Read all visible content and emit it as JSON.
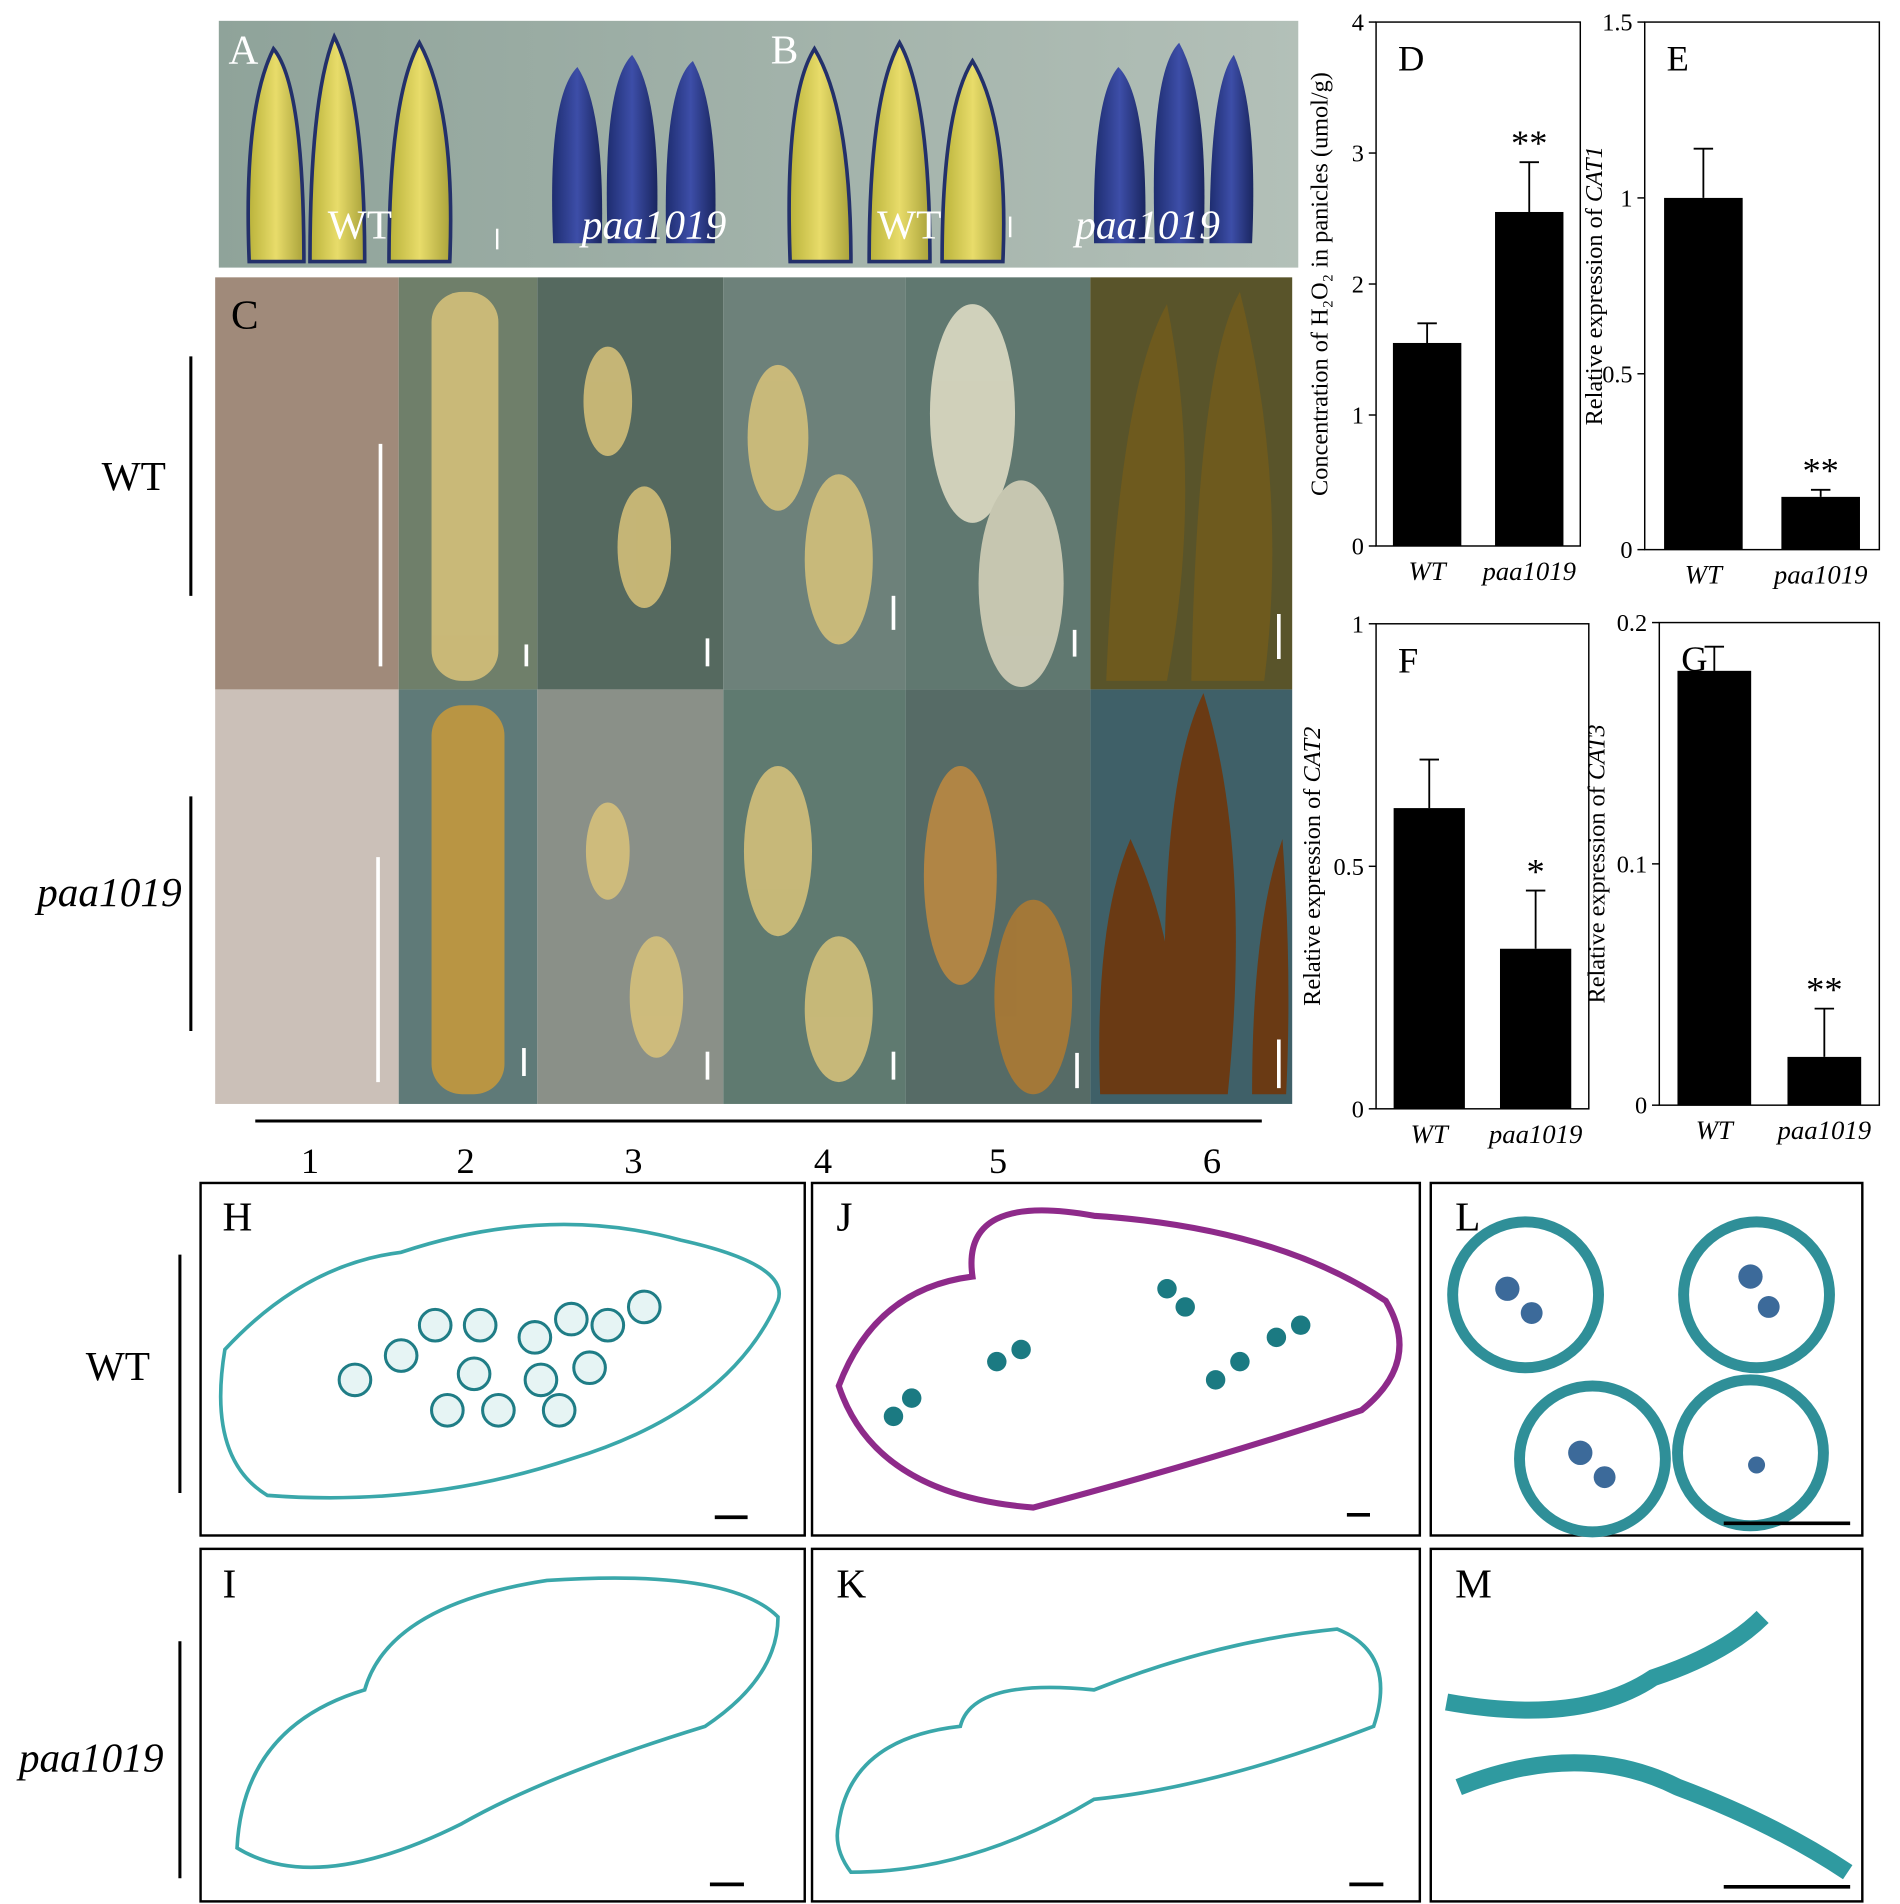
{
  "panels": {
    "A": "A",
    "B": "B",
    "C": "C",
    "H": "H",
    "I": "I",
    "J": "J",
    "K": "K",
    "L": "L",
    "M": "M"
  },
  "panel_A_labels": [
    "WT",
    "paa1019",
    "WT",
    "paa1019"
  ],
  "panel_C": {
    "rows": [
      "WT",
      "paa1019"
    ],
    "stages": [
      "1",
      "2",
      "3",
      "4",
      "5",
      "6"
    ]
  },
  "panel_H_rows": [
    "WT",
    "paa1019"
  ],
  "chart_data": [
    {
      "type": "bar",
      "panel": "D",
      "y_label": "Concentration of H₂O₂ in panicles (umol/g)",
      "categories": [
        "WT",
        "paa1019"
      ],
      "values": [
        1.55,
        2.55
      ],
      "errors": [
        0.15,
        0.38
      ],
      "significance": [
        null,
        "**"
      ],
      "color": "#000000",
      "ylim": [
        0,
        4
      ],
      "yticks": [
        0,
        1,
        2,
        3,
        4
      ]
    },
    {
      "type": "bar",
      "panel": "E",
      "y_label": "Relative expression of",
      "y_label_gene": "CAT1",
      "categories": [
        "WT",
        "paa1019"
      ],
      "values": [
        1.0,
        0.15
      ],
      "errors": [
        0.14,
        0.02
      ],
      "significance": [
        null,
        "**"
      ],
      "color": "#000000",
      "ylim": [
        0,
        1.5
      ],
      "yticks": [
        0,
        0.5,
        1,
        1.5
      ]
    },
    {
      "type": "bar",
      "panel": "F",
      "y_label": "Relative expression of",
      "y_label_gene": "CAT2",
      "categories": [
        "WT",
        "paa1019"
      ],
      "values": [
        0.62,
        0.33
      ],
      "errors": [
        0.1,
        0.12
      ],
      "significance": [
        null,
        "*"
      ],
      "color": "#000000",
      "ylim": [
        0,
        1
      ],
      "yticks": [
        0,
        0.5,
        1
      ]
    },
    {
      "type": "bar",
      "panel": "G",
      "y_label": "Relative expression of",
      "y_label_gene": "CAT3",
      "categories": [
        "WT",
        "paa1019"
      ],
      "values": [
        0.18,
        0.02
      ],
      "errors": [
        0.01,
        0.02
      ],
      "significance": [
        null,
        "**"
      ],
      "color": "#000000",
      "ylim": [
        0,
        0.2
      ],
      "yticks": [
        0,
        0.1,
        0.2
      ]
    }
  ]
}
